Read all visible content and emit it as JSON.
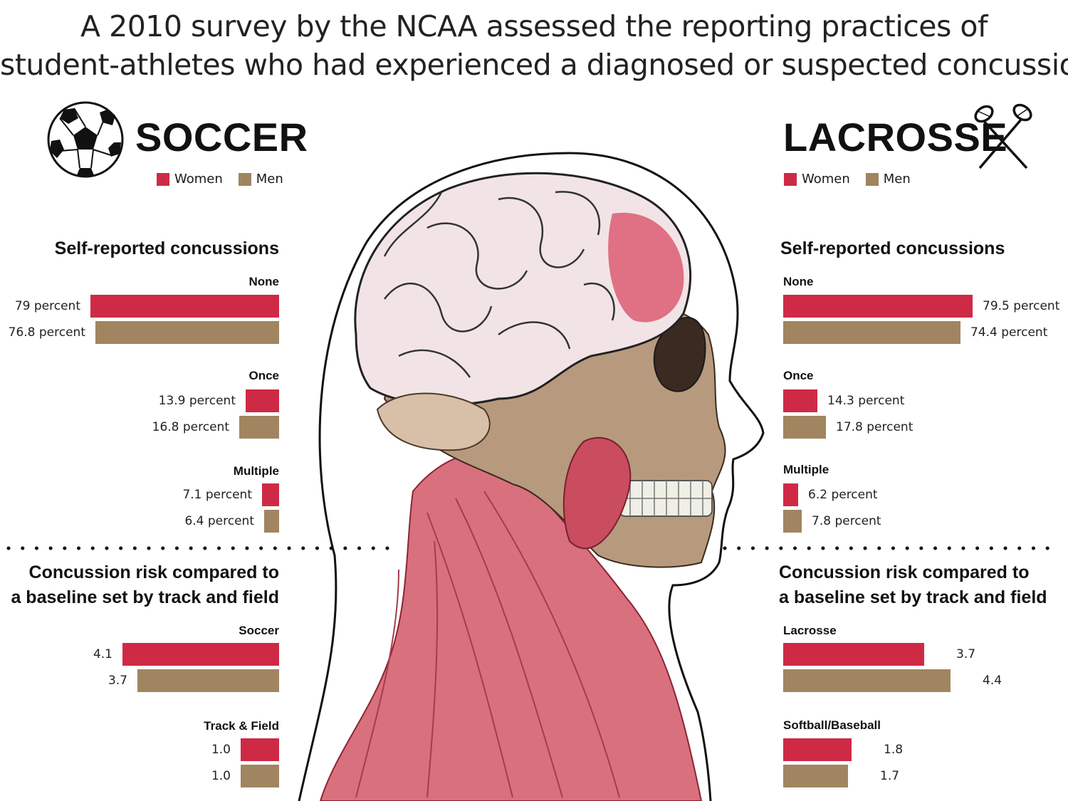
{
  "headline": {
    "line1": "A 2010 survey by the NCAA assessed the reporting practices of",
    "line2": "student-athletes who had experienced a diagnosed or suspected concussion."
  },
  "colors": {
    "women": "#cf2a45",
    "men": "#a08560"
  },
  "icons": {
    "soccer": "soccer-ball-icon",
    "lacrosse": "lacrosse-sticks-icon"
  },
  "soccer": {
    "title": "SOCCER",
    "legend": {
      "women": "Women",
      "men": "Men"
    },
    "section1_title": "Self-reported concussions",
    "section2_title_line1": "Concussion risk compared to",
    "section2_title_line2": "a baseline set by track and field"
  },
  "lacrosse": {
    "title": "LACROSSE",
    "legend": {
      "women": "Women",
      "men": "Men"
    },
    "section1_title": "Self-reported concussions",
    "section2_title_line1": "Concussion risk compared to",
    "section2_title_line2": "a baseline set by track and field"
  },
  "chart_data": [
    {
      "type": "bar",
      "orientation": "horizontal",
      "title": "Self-reported concussions",
      "group": "SOCCER",
      "categories": [
        "None",
        "Once",
        "Multiple"
      ],
      "series": [
        {
          "name": "Women",
          "values": [
            79,
            13.9,
            7.1
          ],
          "labels": [
            "79 percent",
            "13.9 percent",
            "7.1 percent"
          ]
        },
        {
          "name": "Men",
          "values": [
            76.8,
            16.8,
            6.4
          ],
          "labels": [
            "76.8 percent",
            "16.8 percent",
            "6.4 percent"
          ]
        }
      ]
    },
    {
      "type": "bar",
      "orientation": "horizontal",
      "title": "Self-reported concussions",
      "group": "LACROSSE",
      "categories": [
        "None",
        "Once",
        "Multiple"
      ],
      "series": [
        {
          "name": "Women",
          "values": [
            79.5,
            14.3,
            6.2
          ],
          "labels": [
            "79.5 percent",
            "14.3 percent",
            "6.2 percent"
          ]
        },
        {
          "name": "Men",
          "values": [
            74.4,
            17.8,
            7.8
          ],
          "labels": [
            "74.4 percent",
            "17.8 percent",
            "7.8 percent"
          ]
        }
      ]
    },
    {
      "type": "bar",
      "orientation": "horizontal",
      "title": "Concussion risk compared to a baseline set by track and field",
      "group": "SOCCER",
      "categories": [
        "Soccer",
        "Track & Field"
      ],
      "series": [
        {
          "name": "Women",
          "values": [
            4.1,
            1.0
          ],
          "labels": [
            "4.1",
            "1.0"
          ]
        },
        {
          "name": "Men",
          "values": [
            3.7,
            1.0
          ],
          "labels": [
            "3.7",
            "1.0"
          ]
        }
      ]
    },
    {
      "type": "bar",
      "orientation": "horizontal",
      "title": "Concussion risk compared to a baseline set by track and field",
      "group": "LACROSSE",
      "categories": [
        "Lacrosse",
        "Softball/Baseball"
      ],
      "series": [
        {
          "name": "Women",
          "values": [
            3.7,
            1.8
          ],
          "labels": [
            "3.7",
            "1.8"
          ]
        },
        {
          "name": "Men",
          "values": [
            4.4,
            1.7
          ],
          "labels": [
            "4.4",
            "1.7"
          ]
        }
      ]
    }
  ]
}
